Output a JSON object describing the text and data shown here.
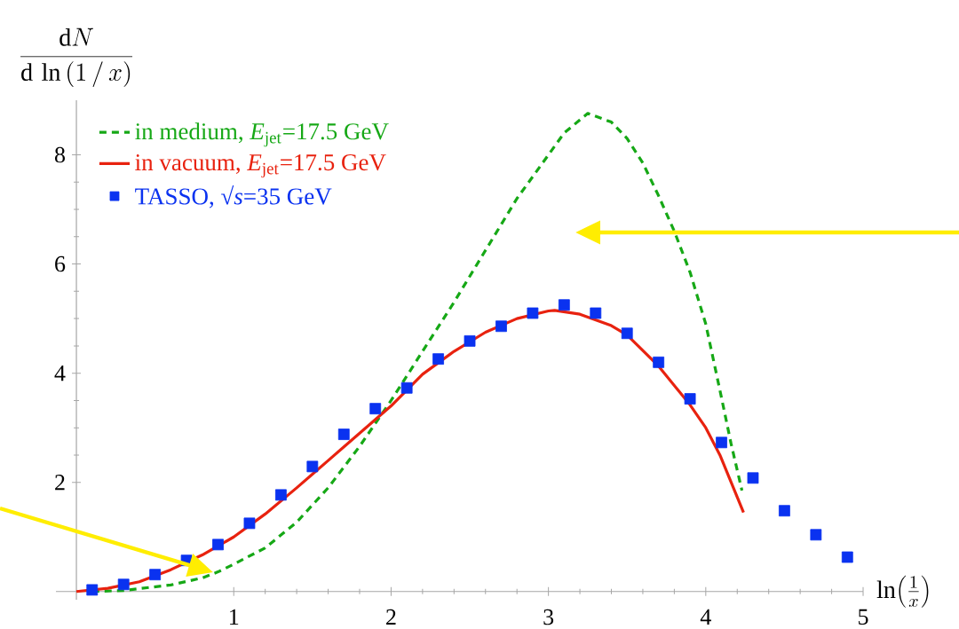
{
  "chart_data": {
    "type": "line",
    "ylabel": "\\frac{\\mathrm{d}N}{\\mathrm{d}\\,\\ln\\,(1\\,/\\,x)}",
    "xlabel": "\\ln\\!\\left(\\frac{1}{x}\\right)",
    "xlim": [
      -0.13,
      5.0
    ],
    "ylim": [
      -0.15,
      9.0
    ],
    "xticks": [
      1,
      2,
      3,
      4,
      5
    ],
    "yticks": [
      2,
      4,
      6,
      8
    ],
    "grid": false,
    "legend": "top left",
    "series": [
      {
        "name": "in medium, *E*$_{jet}$=17.5 GeV",
        "line_style": "dashed",
        "color": "#16a816",
        "x": [
          0.1,
          0.3,
          0.6,
          0.8,
          0.9,
          1.0,
          1.2,
          1.4,
          1.6,
          1.8,
          2.0,
          2.2,
          2.4,
          2.6,
          2.8,
          3.0,
          3.1,
          3.25,
          3.4,
          3.5,
          3.6,
          3.7,
          3.8,
          3.9,
          4.0,
          4.1,
          4.16,
          4.23
        ],
        "values": [
          0.0,
          0.02,
          0.12,
          0.25,
          0.36,
          0.5,
          0.8,
          1.27,
          1.9,
          2.66,
          3.5,
          4.4,
          5.3,
          6.25,
          7.2,
          8.0,
          8.4,
          8.76,
          8.6,
          8.3,
          7.85,
          7.25,
          6.6,
          5.85,
          4.9,
          3.55,
          2.72,
          1.85
        ]
      },
      {
        "name": "in vacuum, *E*$_{jet}$=17.5 GeV",
        "line_style": "solid",
        "color": "#e8220f",
        "x": [
          0.0,
          0.2,
          0.4,
          0.6,
          0.8,
          1.0,
          1.2,
          1.4,
          1.5,
          1.6,
          1.8,
          2.0,
          2.2,
          2.4,
          2.6,
          2.8,
          3.0,
          3.04,
          3.2,
          3.4,
          3.5,
          3.7,
          3.9,
          4.0,
          4.09,
          4.24
        ],
        "values": [
          0.0,
          0.06,
          0.18,
          0.4,
          0.67,
          1.0,
          1.42,
          1.9,
          2.15,
          2.4,
          2.9,
          3.4,
          3.98,
          4.4,
          4.75,
          5.0,
          5.14,
          5.15,
          5.08,
          4.87,
          4.7,
          4.13,
          3.42,
          3.0,
          2.5,
          1.45
        ]
      },
      {
        "name": "TASSO, √*s*=35 GeV",
        "type": "scatter",
        "marker": "square",
        "color": "#0a32f0",
        "x": [
          0.1,
          0.3,
          0.5,
          0.7,
          0.9,
          1.1,
          1.3,
          1.5,
          1.7,
          1.9,
          2.1,
          2.3,
          2.5,
          2.7,
          2.9,
          3.1,
          3.3,
          3.5,
          3.7,
          3.9,
          4.1,
          4.3,
          4.5,
          4.7,
          4.9
        ],
        "values": [
          0.03,
          0.13,
          0.31,
          0.57,
          0.86,
          1.25,
          1.77,
          2.29,
          2.88,
          3.35,
          3.73,
          4.26,
          4.59,
          4.86,
          5.1,
          5.25,
          5.1,
          4.73,
          4.2,
          3.53,
          2.73,
          2.08,
          1.48,
          1.04,
          0.63
        ]
      }
    ]
  }
}
